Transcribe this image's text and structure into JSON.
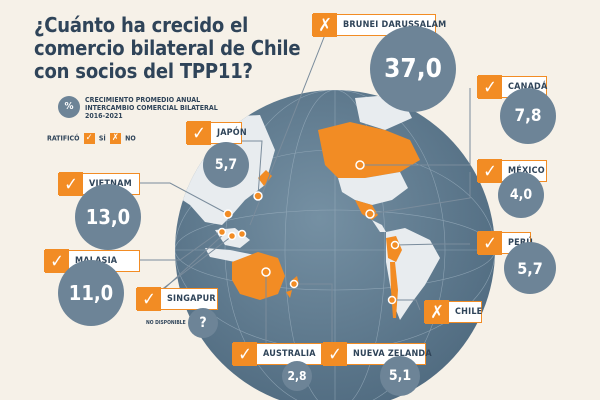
{
  "title": "¿Cuánto ha crecido el comercio bilateral de Chile con socios del TPP11?",
  "legend": {
    "percent_symbol": "%",
    "description": "CRECIMIENTO PROMEDIO ANUAL INTERCAMBIO COMERCIAL BILATERAL 2016-2021",
    "ratified_label": "RATIFICÓ",
    "yes_label": "SÍ",
    "no_label": "NO"
  },
  "colors": {
    "accent": "#f28c24",
    "bubble": "#6d8497",
    "ocean": "#5f7a8e",
    "land_ratified": "#f28c24",
    "land_other": "#e8ecef",
    "background": "#f6f1e8",
    "text": "#2f4459"
  },
  "countries": [
    {
      "id": "brunei",
      "name": "BRUNEI DARUSSALAM",
      "ratified": false,
      "value": "37,0"
    },
    {
      "id": "canada",
      "name": "CANADÁ",
      "ratified": true,
      "value": "7,8"
    },
    {
      "id": "mexico",
      "name": "MÉXICO",
      "ratified": true,
      "value": "4,0"
    },
    {
      "id": "peru",
      "name": "PERÚ",
      "ratified": true,
      "value": "5,7"
    },
    {
      "id": "chile",
      "name": "CHILE",
      "ratified": false,
      "value": ""
    },
    {
      "id": "japon",
      "name": "JAPÓN",
      "ratified": true,
      "value": "5,7"
    },
    {
      "id": "vietnam",
      "name": "VIETNAM",
      "ratified": true,
      "value": "13,0"
    },
    {
      "id": "malasia",
      "name": "MALASIA",
      "ratified": true,
      "value": "11,0"
    },
    {
      "id": "singapur",
      "name": "SINGAPUR",
      "ratified": true,
      "value": "?",
      "note": "NO DISPONIBLE"
    },
    {
      "id": "australia",
      "name": "AUSTRALIA",
      "ratified": true,
      "value": "2,8"
    },
    {
      "id": "nz",
      "name": "NUEVA ZELANDA",
      "ratified": true,
      "value": "5,1"
    }
  ]
}
